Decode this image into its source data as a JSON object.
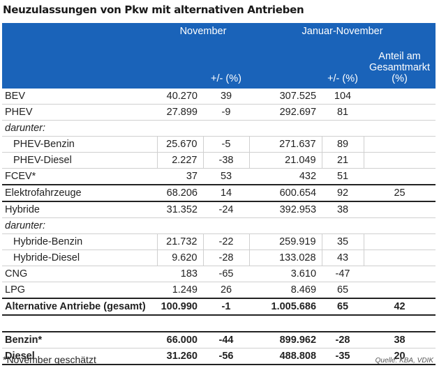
{
  "title": "Neuzulassungen von Pkw mit alternativen Antrieben",
  "header": {
    "november": "November",
    "jan_nov": "Januar-November",
    "change_nov": "+/- (%)",
    "change_jan": "+/- (%)",
    "share_line1": "Anteil am",
    "share_line2": "Gesamtmarkt",
    "share_line3": "(%)"
  },
  "rows": [
    {
      "label": "BEV",
      "nov": "40.270",
      "nov_pct": "39",
      "jan": "307.525",
      "jan_pct": "104",
      "share": ""
    },
    {
      "label": "PHEV",
      "nov": "27.899",
      "nov_pct": "-9",
      "jan": "292.697",
      "jan_pct": "81",
      "share": ""
    },
    {
      "label": "darunter:",
      "nov": "",
      "nov_pct": "",
      "jan": "",
      "jan_pct": "",
      "share": ""
    },
    {
      "label": "PHEV-Benzin",
      "nov": "25.670",
      "nov_pct": "-5",
      "jan": "271.637",
      "jan_pct": "89",
      "share": ""
    },
    {
      "label": "PHEV-Diesel",
      "nov": "2.227",
      "nov_pct": "-38",
      "jan": "21.049",
      "jan_pct": "21",
      "share": ""
    },
    {
      "label": "FCEV*",
      "nov": "37",
      "nov_pct": "53",
      "jan": "432",
      "jan_pct": "51",
      "share": ""
    },
    {
      "label": "Elektrofahrzeuge",
      "nov": "68.206",
      "nov_pct": "14",
      "jan": "600.654",
      "jan_pct": "92",
      "share": "25"
    },
    {
      "label": "Hybride",
      "nov": "31.352",
      "nov_pct": "-24",
      "jan": "392.953",
      "jan_pct": "38",
      "share": ""
    },
    {
      "label": "darunter:",
      "nov": "",
      "nov_pct": "",
      "jan": "",
      "jan_pct": "",
      "share": ""
    },
    {
      "label": "Hybride-Benzin",
      "nov": "21.732",
      "nov_pct": "-22",
      "jan": "259.919",
      "jan_pct": "35",
      "share": ""
    },
    {
      "label": "Hybride-Diesel",
      "nov": "9.620",
      "nov_pct": "-28",
      "jan": "133.028",
      "jan_pct": "43",
      "share": ""
    },
    {
      "label": "CNG",
      "nov": "183",
      "nov_pct": "-65",
      "jan": "3.610",
      "jan_pct": "-47",
      "share": ""
    },
    {
      "label": "LPG",
      "nov": "1.249",
      "nov_pct": "26",
      "jan": "8.469",
      "jan_pct": "65",
      "share": ""
    },
    {
      "label": "Alternative Antriebe (gesamt)",
      "nov": "100.990",
      "nov_pct": "-1",
      "jan": "1.005.686",
      "jan_pct": "65",
      "share": "42"
    },
    {
      "label": "Benzin*",
      "nov": "66.000",
      "nov_pct": "-44",
      "jan": "899.962",
      "jan_pct": "-28",
      "share": "38"
    },
    {
      "label": "Diesel",
      "nov": "31.260",
      "nov_pct": "-56",
      "jan": "488.808",
      "jan_pct": "-35",
      "share": "20"
    }
  ],
  "footnote": "*November geschätzt",
  "source": "Quelle: KBA, VDIK",
  "colors": {
    "header_bg": "#1a63b9",
    "header_text": "#ffffff",
    "rule": "#222222",
    "grid": "#cfcfcf"
  }
}
